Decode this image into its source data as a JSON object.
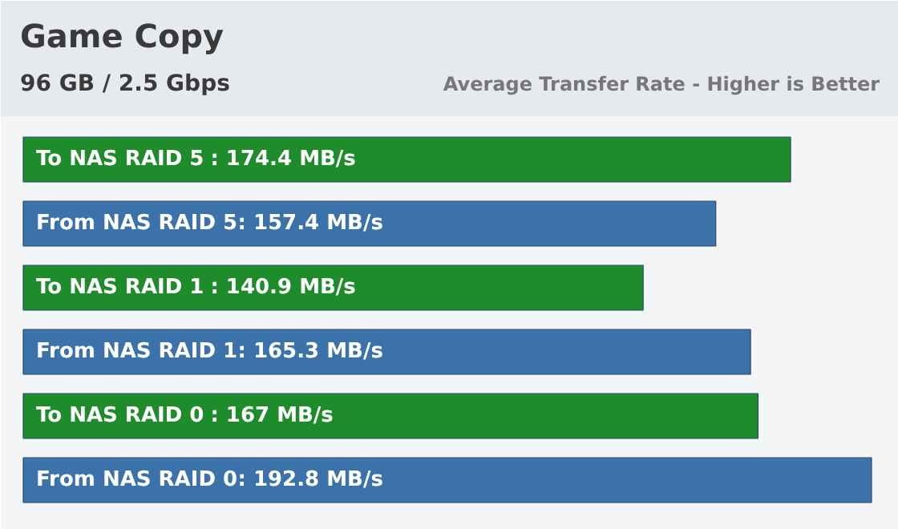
{
  "chart_data": {
    "type": "bar",
    "orientation": "horizontal",
    "title": "Game Copy",
    "subtitle": "96 GB / 2.5 Gbps",
    "annotations": [
      "Average Transfer Rate - Higher is Better"
    ],
    "categories": [
      "To NAS RAID 5",
      "From NAS RAID 5",
      "To NAS RAID 1",
      "From NAS RAID 1",
      "To NAS RAID 0",
      "From NAS RAID 0"
    ],
    "values": [
      174.4,
      157.4,
      140.9,
      165.3,
      167,
      192.8
    ],
    "value_labels": [
      ": 174.4 MB/s",
      ": 157.4 MB/s",
      ": 140.9 MB/s",
      ": 165.3 MB/s",
      ": 167 MB/s",
      ": 192.8 MB/s"
    ],
    "colors": [
      "#1f8c2c",
      "#3b72a9",
      "#1f8c2c",
      "#3b72a9",
      "#1f8c2c",
      "#3b72a9"
    ],
    "grid": false
  }
}
